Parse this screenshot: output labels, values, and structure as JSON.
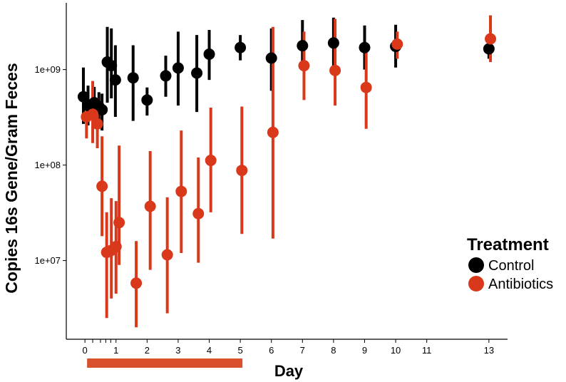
{
  "chart_data": {
    "type": "scatter",
    "xlabel": "Day",
    "ylabel": "Copies 16s Gene/Gram Feces",
    "y_scale": "log10",
    "ylim": [
      1500000,
      5000000000
    ],
    "xlim": [
      -0.6,
      13.6
    ],
    "x_ticks": [
      0,
      1,
      2,
      3,
      4,
      5,
      6,
      7,
      8,
      9,
      10,
      11,
      13
    ],
    "x_minor_ticks": [
      0.25,
      0.5,
      0.67,
      0.83
    ],
    "y_ticks": [
      {
        "value": 10000000,
        "label": "1e+07"
      },
      {
        "value": 100000000,
        "label": "1e+08"
      },
      {
        "value": 1000000000,
        "label": "1e+09"
      }
    ],
    "treatment_period": {
      "start_day": 0,
      "end_day": 5,
      "color": "#d9502c"
    },
    "legend": {
      "title": "Treatment",
      "position": "right"
    },
    "series": [
      {
        "name": "Control",
        "color": "#000000",
        "points": [
          {
            "x": -0.05,
            "y": 520000000,
            "lo": 270000000,
            "hi": 1050000000
          },
          {
            "x": 0.1,
            "y": 420000000,
            "lo": 260000000,
            "hi": 680000000
          },
          {
            "x": 0.3,
            "y": 450000000,
            "lo": 280000000,
            "hi": 660000000
          },
          {
            "x": 0.45,
            "y": 410000000,
            "lo": 250000000,
            "hi": 580000000
          },
          {
            "x": 0.55,
            "y": 380000000,
            "lo": 230000000,
            "hi": 560000000
          },
          {
            "x": 0.72,
            "y": 1200000000,
            "lo": 450000000,
            "hi": 2800000000
          },
          {
            "x": 0.85,
            "y": 1100000000,
            "lo": 500000000,
            "hi": 2700000000
          },
          {
            "x": 0.98,
            "y": 780000000,
            "lo": 320000000,
            "hi": 1800000000
          },
          {
            "x": 1.55,
            "y": 820000000,
            "lo": 290000000,
            "hi": 1800000000
          },
          {
            "x": 2.0,
            "y": 480000000,
            "lo": 330000000,
            "hi": 650000000
          },
          {
            "x": 2.6,
            "y": 860000000,
            "lo": 520000000,
            "hi": 1400000000
          },
          {
            "x": 3.0,
            "y": 1040000000,
            "lo": 420000000,
            "hi": 2500000000
          },
          {
            "x": 3.6,
            "y": 920000000,
            "lo": 360000000,
            "hi": 2300000000
          },
          {
            "x": 4.0,
            "y": 1450000000,
            "lo": 780000000,
            "hi": 2600000000
          },
          {
            "x": 5.0,
            "y": 1700000000,
            "lo": 1250000000,
            "hi": 2300000000
          },
          {
            "x": 6.0,
            "y": 1320000000,
            "lo": 600000000,
            "hi": 2700000000
          },
          {
            "x": 7.0,
            "y": 1780000000,
            "lo": 1100000000,
            "hi": 3300000000
          },
          {
            "x": 8.0,
            "y": 1900000000,
            "lo": 1050000000,
            "hi": 3500000000
          },
          {
            "x": 9.0,
            "y": 1700000000,
            "lo": 1000000000,
            "hi": 2900000000
          },
          {
            "x": 10.0,
            "y": 1750000000,
            "lo": 1050000000,
            "hi": 2950000000
          },
          {
            "x": 13.0,
            "y": 1650000000,
            "lo": 1300000000,
            "hi": 2100000000
          }
        ]
      },
      {
        "name": "Antibiotics",
        "color": "#d9391a",
        "points": [
          {
            "x": 0.05,
            "y": 320000000,
            "lo": 190000000,
            "hi": 460000000
          },
          {
            "x": 0.25,
            "y": 340000000,
            "lo": 170000000,
            "hi": 760000000
          },
          {
            "x": 0.4,
            "y": 270000000,
            "lo": 150000000,
            "hi": 500000000
          },
          {
            "x": 0.55,
            "y": 60000000,
            "lo": 18000000,
            "hi": 200000000
          },
          {
            "x": 0.7,
            "y": 12200000,
            "lo": 2500000,
            "hi": 32000000
          },
          {
            "x": 0.85,
            "y": 12800000,
            "lo": 4000000,
            "hi": 45000000
          },
          {
            "x": 1.0,
            "y": 14000000,
            "lo": 4500000,
            "hi": 42000000
          },
          {
            "x": 1.1,
            "y": 25000000,
            "lo": 9000000,
            "hi": 160000000
          },
          {
            "x": 1.65,
            "y": 5800000,
            "lo": 2000000,
            "hi": 16000000
          },
          {
            "x": 2.1,
            "y": 37000000,
            "lo": 8000000,
            "hi": 140000000
          },
          {
            "x": 2.65,
            "y": 11500000,
            "lo": 2800000,
            "hi": 46000000
          },
          {
            "x": 3.1,
            "y": 53000000,
            "lo": 12000000,
            "hi": 230000000
          },
          {
            "x": 3.65,
            "y": 31000000,
            "lo": 9500000,
            "hi": 120000000
          },
          {
            "x": 4.05,
            "y": 112000000,
            "lo": 32000000,
            "hi": 400000000
          },
          {
            "x": 5.05,
            "y": 88000000,
            "lo": 19000000,
            "hi": 410000000
          },
          {
            "x": 6.05,
            "y": 220000000,
            "lo": 17000000,
            "hi": 2800000000
          },
          {
            "x": 7.05,
            "y": 1100000000,
            "lo": 480000000,
            "hi": 2500000000
          },
          {
            "x": 8.05,
            "y": 980000000,
            "lo": 420000000,
            "hi": 3400000000
          },
          {
            "x": 9.05,
            "y": 650000000,
            "lo": 240000000,
            "hi": 1800000000
          },
          {
            "x": 10.05,
            "y": 1850000000,
            "lo": 1300000000,
            "hi": 2500000000
          },
          {
            "x": 13.05,
            "y": 2100000000,
            "lo": 1200000000,
            "hi": 3700000000
          }
        ]
      }
    ]
  }
}
